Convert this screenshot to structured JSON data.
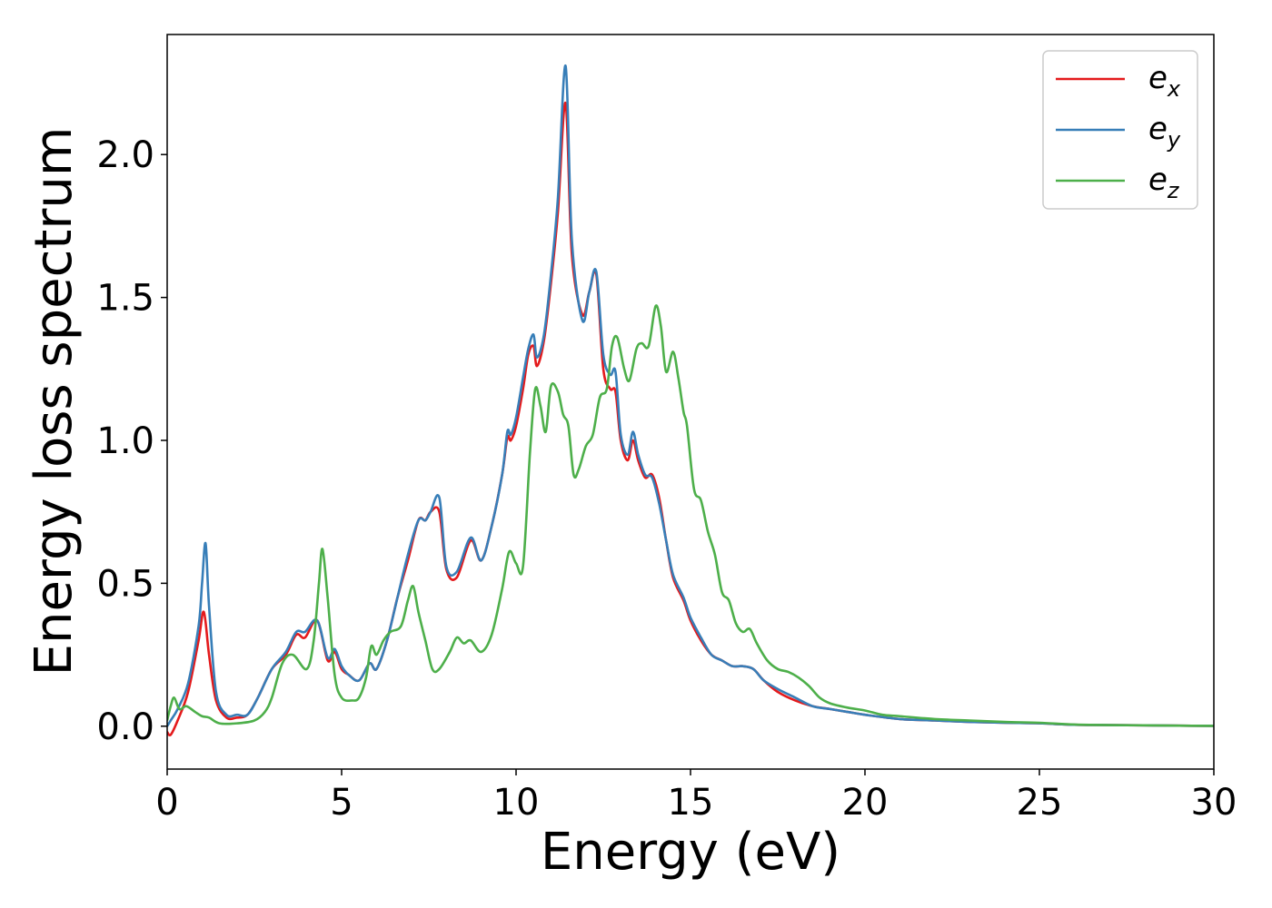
{
  "chart_data": {
    "type": "line",
    "xlabel": "Energy (eV)",
    "ylabel": "Energy loss spectrum",
    "xlim": [
      0,
      30
    ],
    "ylim": [
      -0.15,
      2.42
    ],
    "xticks": [
      0,
      5,
      10,
      15,
      20,
      25,
      30
    ],
    "xtick_labels": [
      "0",
      "5",
      "10",
      "15",
      "20",
      "25",
      "30"
    ],
    "yticks": [
      0.0,
      0.5,
      1.0,
      1.5,
      2.0
    ],
    "ytick_labels": [
      "0.0",
      "0.5",
      "1.0",
      "1.5",
      "2.0"
    ],
    "grid": false,
    "legend_position": "top-right",
    "series": [
      {
        "name": "e_x",
        "label_base": "e",
        "label_sub": "x",
        "color": "#e41a1c",
        "x": [
          0,
          0.1,
          0.3,
          0.6,
          0.9,
          1.05,
          1.2,
          1.4,
          1.7,
          2.0,
          2.3,
          2.6,
          3.0,
          3.4,
          3.7,
          3.95,
          4.3,
          4.6,
          4.8,
          5.0,
          5.2,
          5.5,
          5.8,
          6.0,
          6.3,
          6.6,
          6.9,
          7.2,
          7.4,
          7.55,
          7.8,
          8.0,
          8.3,
          8.7,
          9.0,
          9.3,
          9.6,
          9.75,
          9.85,
          10.0,
          10.2,
          10.35,
          10.5,
          10.6,
          10.8,
          11.0,
          11.2,
          11.42,
          11.6,
          11.9,
          12.1,
          12.3,
          12.5,
          12.7,
          12.85,
          13.0,
          13.2,
          13.35,
          13.5,
          13.7,
          13.9,
          14.1,
          14.3,
          14.5,
          14.8,
          15.0,
          15.3,
          15.6,
          15.9,
          16.2,
          16.5,
          16.8,
          17.1,
          17.5,
          18.0,
          18.5,
          19.0,
          19.5,
          20.0,
          21.0,
          22.0,
          23.0,
          24.0,
          25.0,
          26.0,
          27.0,
          28.0,
          29.0,
          30.0
        ],
        "y": [
          -0.02,
          -0.03,
          0.02,
          0.12,
          0.3,
          0.4,
          0.25,
          0.09,
          0.03,
          0.03,
          0.04,
          0.1,
          0.2,
          0.25,
          0.32,
          0.31,
          0.37,
          0.23,
          0.26,
          0.2,
          0.18,
          0.16,
          0.22,
          0.2,
          0.3,
          0.45,
          0.58,
          0.72,
          0.72,
          0.75,
          0.75,
          0.55,
          0.52,
          0.65,
          0.58,
          0.7,
          0.88,
          1.01,
          1.0,
          1.05,
          1.18,
          1.3,
          1.33,
          1.26,
          1.35,
          1.55,
          1.8,
          2.18,
          1.65,
          1.44,
          1.52,
          1.58,
          1.25,
          1.18,
          1.17,
          1.0,
          0.93,
          1.0,
          0.93,
          0.87,
          0.88,
          0.8,
          0.65,
          0.52,
          0.44,
          0.37,
          0.3,
          0.25,
          0.23,
          0.21,
          0.21,
          0.2,
          0.16,
          0.12,
          0.09,
          0.07,
          0.06,
          0.05,
          0.04,
          0.025,
          0.02,
          0.015,
          0.012,
          0.01,
          0.005,
          0.004,
          0.003,
          0.002,
          0.001
        ]
      },
      {
        "name": "e_y",
        "label_base": "e",
        "label_sub": "y",
        "color": "#377eb8",
        "x": [
          0,
          0.1,
          0.3,
          0.6,
          0.9,
          1.0,
          1.1,
          1.2,
          1.4,
          1.7,
          2.0,
          2.3,
          2.6,
          3.0,
          3.4,
          3.7,
          3.95,
          4.3,
          4.6,
          4.8,
          5.0,
          5.2,
          5.5,
          5.8,
          6.0,
          6.3,
          6.6,
          6.9,
          7.2,
          7.4,
          7.55,
          7.8,
          8.0,
          8.3,
          8.7,
          9.0,
          9.3,
          9.6,
          9.75,
          9.85,
          10.0,
          10.2,
          10.35,
          10.5,
          10.6,
          10.8,
          11.0,
          11.2,
          11.42,
          11.6,
          11.9,
          12.1,
          12.3,
          12.5,
          12.7,
          12.85,
          13.0,
          13.2,
          13.35,
          13.5,
          13.7,
          13.9,
          14.1,
          14.3,
          14.5,
          14.8,
          15.0,
          15.3,
          15.6,
          15.9,
          16.2,
          16.5,
          16.8,
          17.1,
          17.5,
          18.0,
          18.5,
          19.0,
          19.5,
          20.0,
          21.0,
          22.0,
          23.0,
          24.0,
          25.0,
          26.0,
          27.0,
          28.0,
          29.0,
          30.0
        ],
        "y": [
          0.0,
          0.02,
          0.06,
          0.15,
          0.35,
          0.5,
          0.64,
          0.42,
          0.12,
          0.04,
          0.04,
          0.04,
          0.1,
          0.2,
          0.26,
          0.33,
          0.33,
          0.37,
          0.24,
          0.27,
          0.21,
          0.18,
          0.16,
          0.22,
          0.2,
          0.3,
          0.45,
          0.6,
          0.72,
          0.72,
          0.75,
          0.8,
          0.56,
          0.54,
          0.66,
          0.58,
          0.7,
          0.88,
          1.03,
          1.02,
          1.08,
          1.22,
          1.32,
          1.37,
          1.29,
          1.37,
          1.58,
          1.85,
          2.31,
          1.7,
          1.42,
          1.52,
          1.59,
          1.3,
          1.23,
          1.24,
          1.02,
          0.95,
          1.03,
          0.95,
          0.88,
          0.87,
          0.78,
          0.65,
          0.53,
          0.45,
          0.38,
          0.31,
          0.25,
          0.23,
          0.21,
          0.21,
          0.2,
          0.16,
          0.13,
          0.1,
          0.07,
          0.06,
          0.05,
          0.04,
          0.025,
          0.02,
          0.015,
          0.012,
          0.01,
          0.005,
          0.004,
          0.003,
          0.002,
          0.001
        ]
      },
      {
        "name": "e_z",
        "label_base": "e",
        "label_sub": "z",
        "color": "#4daf4a",
        "x": [
          0,
          0.1,
          0.2,
          0.35,
          0.55,
          0.8,
          1.0,
          1.2,
          1.5,
          2.0,
          2.5,
          2.8,
          3.0,
          3.3,
          3.6,
          4.0,
          4.2,
          4.35,
          4.45,
          4.6,
          4.8,
          5.0,
          5.3,
          5.5,
          5.7,
          5.85,
          6.0,
          6.2,
          6.4,
          6.7,
          6.9,
          7.05,
          7.2,
          7.4,
          7.6,
          7.8,
          8.1,
          8.3,
          8.5,
          8.7,
          9.0,
          9.3,
          9.6,
          9.8,
          10.0,
          10.2,
          10.4,
          10.55,
          10.7,
          10.85,
          11.0,
          11.2,
          11.35,
          11.5,
          11.65,
          11.8,
          12.0,
          12.2,
          12.4,
          12.6,
          12.75,
          12.9,
          13.1,
          13.25,
          13.45,
          13.6,
          13.8,
          14.0,
          14.15,
          14.3,
          14.5,
          14.65,
          14.8,
          14.9,
          15.1,
          15.3,
          15.5,
          15.7,
          15.9,
          16.1,
          16.3,
          16.5,
          16.7,
          16.9,
          17.2,
          17.5,
          17.8,
          18.1,
          18.4,
          18.7,
          19.0,
          19.5,
          20.0,
          20.5,
          21.0,
          22.0,
          23.0,
          24.0,
          25.0,
          26.0,
          27.0,
          28.0,
          29.0,
          30.0
        ],
        "y": [
          0.02,
          0.07,
          0.1,
          0.06,
          0.07,
          0.05,
          0.035,
          0.03,
          0.01,
          0.01,
          0.02,
          0.05,
          0.1,
          0.22,
          0.25,
          0.2,
          0.3,
          0.5,
          0.62,
          0.45,
          0.18,
          0.1,
          0.09,
          0.1,
          0.17,
          0.28,
          0.25,
          0.3,
          0.33,
          0.35,
          0.44,
          0.49,
          0.4,
          0.3,
          0.2,
          0.2,
          0.26,
          0.31,
          0.29,
          0.3,
          0.26,
          0.32,
          0.48,
          0.61,
          0.57,
          0.56,
          0.96,
          1.18,
          1.12,
          1.03,
          1.19,
          1.17,
          1.09,
          1.05,
          0.88,
          0.9,
          0.98,
          1.02,
          1.15,
          1.18,
          1.33,
          1.36,
          1.25,
          1.21,
          1.32,
          1.34,
          1.33,
          1.47,
          1.4,
          1.24,
          1.31,
          1.22,
          1.1,
          1.05,
          0.83,
          0.79,
          0.68,
          0.6,
          0.47,
          0.44,
          0.36,
          0.33,
          0.34,
          0.29,
          0.23,
          0.2,
          0.19,
          0.17,
          0.14,
          0.1,
          0.08,
          0.065,
          0.055,
          0.04,
          0.035,
          0.025,
          0.02,
          0.015,
          0.012,
          0.006,
          0.004,
          0.003,
          0.002,
          0.001
        ]
      }
    ]
  }
}
